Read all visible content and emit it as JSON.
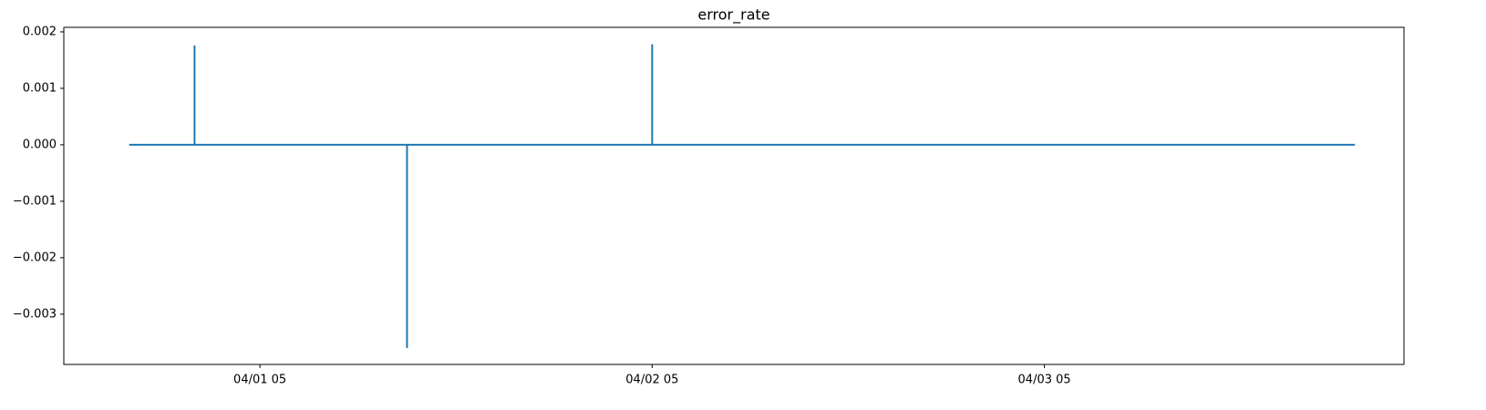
{
  "chart_data": {
    "type": "line",
    "title": "error_rate",
    "x": [
      "03/31 21",
      "04/01 01",
      "04/01 01",
      "04/01 01",
      "04/01 14",
      "04/01 14",
      "04/01 14",
      "04/02 05",
      "04/02 05",
      "04/02 05",
      "04/04 00"
    ],
    "series": [
      {
        "name": "error_rate",
        "color": "#1f77b4",
        "values": [
          0,
          0,
          0.00176,
          0,
          0,
          -0.0036,
          0,
          0,
          0.00178,
          0,
          0
        ]
      }
    ],
    "xlim": [
      "03/31 17",
      "04/04 03"
    ],
    "xticks": [
      "04/01 05",
      "04/02 05",
      "04/03 05"
    ],
    "ylim": [
      -0.00389,
      0.00208
    ],
    "yticks": [
      {
        "value": -0.003,
        "label": "−0.003"
      },
      {
        "value": -0.002,
        "label": "−0.002"
      },
      {
        "value": -0.001,
        "label": "−0.001"
      },
      {
        "value": 0,
        "label": "0.000"
      },
      0.001,
      0.002
    ],
    "grid": false
  }
}
